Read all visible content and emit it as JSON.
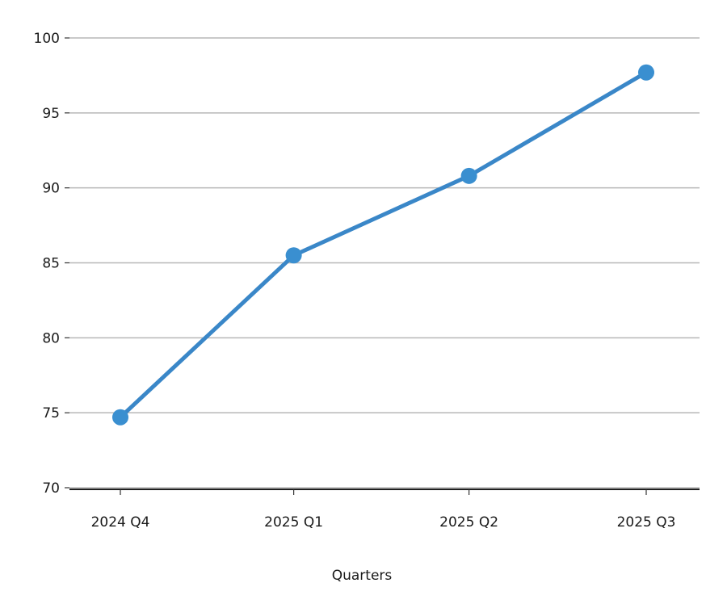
{
  "chart_data": {
    "type": "line",
    "title": "",
    "xlabel": "Quarters",
    "ylabel": "",
    "categories": [
      "2024 Q4",
      "2025 Q1",
      "2025 Q2",
      "2025 Q3"
    ],
    "x_positions": [
      "2024-12-31",
      "2025-03-31",
      "2025-06-30",
      "2025-09-30"
    ],
    "series": [
      {
        "values": [
          74.7,
          85.5,
          90.8,
          97.7
        ]
      }
    ],
    "ylim": [
      70,
      100
    ],
    "yticks": [
      70,
      75,
      80,
      85,
      90,
      95,
      100
    ],
    "grid": "horizontal",
    "legend": "none",
    "colors": {
      "line": "#3a87c8",
      "marker": "#3a8fd0",
      "grid": "#b7b7b7",
      "axis": "#000000"
    }
  }
}
